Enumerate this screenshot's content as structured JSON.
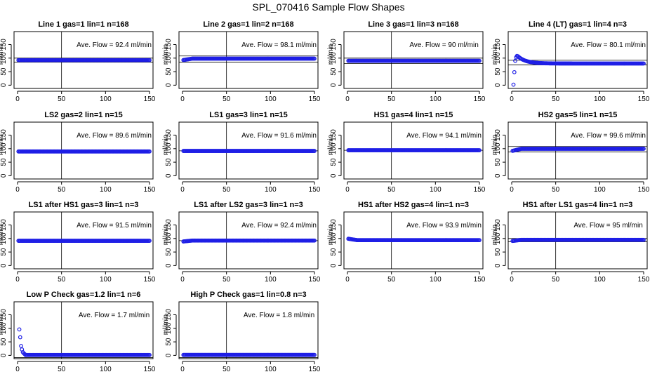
{
  "figure": {
    "title": "SPL_070416  Sample Flow Shapes",
    "series_color": "#1f1fe6"
  },
  "chart_data": [
    {
      "type": "scatter",
      "title": "Line 1 gas=1 lin=1 n=168",
      "xlabel": "",
      "ylabel": "ml/min",
      "x_ticks": [
        0,
        50,
        100,
        150
      ],
      "y_ticks": [
        0,
        50,
        100,
        150
      ],
      "xlim": [
        -4,
        154
      ],
      "ylim": [
        -12,
        198
      ],
      "vline": 50,
      "hlines": [
        85,
        100
      ],
      "annotation": "Ave. Flow =  92.4  ml/min",
      "series": [
        {
          "shape": "flat",
          "x_range": [
            1,
            150
          ],
          "value": 92.4
        }
      ]
    },
    {
      "type": "scatter",
      "title": "Line 2 gas=1 lin=2 n=168",
      "xlabel": "",
      "ylabel": "ml/min",
      "x_ticks": [
        0,
        50,
        100,
        150
      ],
      "y_ticks": [
        0,
        50,
        100,
        150
      ],
      "xlim": [
        -4,
        154
      ],
      "ylim": [
        -12,
        198
      ],
      "vline": 50,
      "hlines": [
        85,
        108
      ],
      "annotation": "Ave. Flow =  98.1  ml/min",
      "series": [
        {
          "shape": "flat",
          "x_range": [
            1,
            150
          ],
          "value": 98.1,
          "start_value": 93
        }
      ]
    },
    {
      "type": "scatter",
      "title": "Line 3 gas=1 lin=3 n=168",
      "xlabel": "",
      "ylabel": "ml/min",
      "x_ticks": [
        0,
        50,
        100,
        150
      ],
      "y_ticks": [
        0,
        50,
        100,
        150
      ],
      "xlim": [
        -4,
        154
      ],
      "ylim": [
        -12,
        198
      ],
      "vline": 50,
      "hlines": [
        80,
        100
      ],
      "annotation": "Ave. Flow =  90  ml/min",
      "series": [
        {
          "shape": "flat",
          "x_range": [
            1,
            150
          ],
          "value": 90
        }
      ]
    },
    {
      "type": "scatter",
      "title": "Line 4 (LT) gas=1 lin=4 n=3",
      "xlabel": "",
      "ylabel": "ml/min",
      "x_ticks": [
        0,
        50,
        100,
        150
      ],
      "y_ticks": [
        0,
        50,
        100,
        150
      ],
      "xlim": [
        -4,
        154
      ],
      "ylim": [
        -12,
        198
      ],
      "vline": 50,
      "hlines": [
        75,
        92
      ],
      "annotation": "Ave. Flow =  80.1  ml/min",
      "series": [
        {
          "shape": "overshoot",
          "x_range": [
            1,
            150
          ],
          "value": 80.1,
          "leading_points": [
            [
              2,
              2
            ],
            [
              3,
              48
            ],
            [
              4,
              90
            ],
            [
              5,
              103
            ],
            [
              6,
              108
            ],
            [
              7,
              107
            ]
          ]
        }
      ]
    },
    {
      "type": "scatter",
      "title": "LS2 gas=2 lin=1 n=15",
      "xlabel": "",
      "ylabel": "ml/min",
      "x_ticks": [
        0,
        50,
        100,
        150
      ],
      "y_ticks": [
        0,
        50,
        100,
        150
      ],
      "xlim": [
        -4,
        154
      ],
      "ylim": [
        -12,
        198
      ],
      "vline": 50,
      "hlines": [],
      "annotation": "Ave. Flow =  89.6  ml/min",
      "series": [
        {
          "shape": "flat",
          "x_range": [
            1,
            150
          ],
          "value": 89.6
        }
      ]
    },
    {
      "type": "scatter",
      "title": "LS1 gas=3 lin=1 n=15",
      "xlabel": "",
      "ylabel": "ml/min",
      "x_ticks": [
        0,
        50,
        100,
        150
      ],
      "y_ticks": [
        0,
        50,
        100,
        150
      ],
      "xlim": [
        -4,
        154
      ],
      "ylim": [
        -12,
        198
      ],
      "vline": 50,
      "hlines": [
        92
      ],
      "annotation": "Ave. Flow =  91.6  ml/min",
      "series": [
        {
          "shape": "flat",
          "x_range": [
            1,
            150
          ],
          "value": 91.6
        }
      ]
    },
    {
      "type": "scatter",
      "title": "HS1 gas=4 lin=1 n=15",
      "xlabel": "",
      "ylabel": "ml/min",
      "x_ticks": [
        0,
        50,
        100,
        150
      ],
      "y_ticks": [
        0,
        50,
        100,
        150
      ],
      "xlim": [
        -4,
        154
      ],
      "ylim": [
        -12,
        198
      ],
      "vline": 50,
      "hlines": [
        94
      ],
      "annotation": "Ave. Flow =  94.1  ml/min",
      "series": [
        {
          "shape": "flat",
          "x_range": [
            1,
            150
          ],
          "value": 94.1
        }
      ]
    },
    {
      "type": "scatter",
      "title": "HS2 gas=5 lin=1 n=15",
      "xlabel": "",
      "ylabel": "ml/min",
      "x_ticks": [
        0,
        50,
        100,
        150
      ],
      "y_ticks": [
        0,
        50,
        100,
        150
      ],
      "xlim": [
        -4,
        154
      ],
      "ylim": [
        -12,
        198
      ],
      "vline": 50,
      "hlines": [
        88,
        108
      ],
      "annotation": "Ave. Flow =  99.6  ml/min",
      "series": [
        {
          "shape": "flat",
          "x_range": [
            1,
            150
          ],
          "value": 99.6,
          "start_value": 92
        }
      ]
    },
    {
      "type": "scatter",
      "title": "LS1 after HS1 gas=3 lin=1 n=3",
      "xlabel": "",
      "ylabel": "ml/min",
      "x_ticks": [
        0,
        50,
        100,
        150
      ],
      "y_ticks": [
        0,
        50,
        100,
        150
      ],
      "xlim": [
        -4,
        154
      ],
      "ylim": [
        -12,
        198
      ],
      "vline": 50,
      "hlines": [],
      "annotation": "Ave. Flow =  91.5  ml/min",
      "series": [
        {
          "shape": "flat",
          "x_range": [
            1,
            150
          ],
          "value": 91.5
        }
      ]
    },
    {
      "type": "scatter",
      "title": "LS1 after LS2 gas=3 lin=1 n=3",
      "xlabel": "",
      "ylabel": "ml/min",
      "x_ticks": [
        0,
        50,
        100,
        150
      ],
      "y_ticks": [
        0,
        50,
        100,
        150
      ],
      "xlim": [
        -4,
        154
      ],
      "ylim": [
        -12,
        198
      ],
      "vline": 50,
      "hlines": [
        92
      ],
      "annotation": "Ave. Flow =  92.4  ml/min",
      "series": [
        {
          "shape": "flat",
          "x_range": [
            1,
            150
          ],
          "value": 92.4,
          "start_value": 89
        }
      ]
    },
    {
      "type": "scatter",
      "title": "HS1 after HS2 gas=4 lin=1 n=3",
      "xlabel": "",
      "ylabel": "ml/min",
      "x_ticks": [
        0,
        50,
        100,
        150
      ],
      "y_ticks": [
        0,
        50,
        100,
        150
      ],
      "xlim": [
        -4,
        154
      ],
      "ylim": [
        -12,
        198
      ],
      "vline": 50,
      "hlines": [],
      "annotation": "Ave. Flow =  93.9  ml/min",
      "series": [
        {
          "shape": "flat",
          "x_range": [
            1,
            150
          ],
          "value": 93.9,
          "start_value": 99
        }
      ]
    },
    {
      "type": "scatter",
      "title": "HS1 after LS1 gas=4 lin=1 n=3",
      "xlabel": "",
      "ylabel": "ml/min",
      "x_ticks": [
        0,
        50,
        100,
        150
      ],
      "y_ticks": [
        0,
        50,
        100,
        150
      ],
      "xlim": [
        -4,
        154
      ],
      "ylim": [
        -12,
        198
      ],
      "vline": 50,
      "hlines": [
        88,
        100
      ],
      "annotation": "Ave. Flow =  95  ml/min",
      "series": [
        {
          "shape": "flat",
          "x_range": [
            1,
            150
          ],
          "value": 95,
          "start_value": 91
        }
      ]
    },
    {
      "type": "scatter",
      "title": "Low P Check gas=1.2 lin=1 n=6",
      "xlabel": "",
      "ylabel": "ml/min",
      "x_ticks": [
        0,
        50,
        100,
        150
      ],
      "y_ticks": [
        0,
        50,
        100,
        150
      ],
      "xlim": [
        -4,
        154
      ],
      "ylim": [
        -12,
        198
      ],
      "vline": 50,
      "hlines": [
        -8
      ],
      "annotation": "Ave. Flow =  1.7  ml/min",
      "series": [
        {
          "shape": "decay",
          "x_range": [
            1,
            150
          ],
          "value": 1.7,
          "leading_points": [
            [
              2,
              96
            ],
            [
              3,
              67
            ],
            [
              4,
              35
            ],
            [
              5,
              22
            ],
            [
              6,
              12
            ],
            [
              7,
              8
            ],
            [
              8,
              5
            ]
          ]
        }
      ]
    },
    {
      "type": "scatter",
      "title": "High P Check gas=1 lin=0.8 n=3",
      "xlabel": "",
      "ylabel": "ml/min",
      "x_ticks": [
        0,
        50,
        100,
        150
      ],
      "y_ticks": [
        0,
        50,
        100,
        150
      ],
      "xlim": [
        -4,
        154
      ],
      "ylim": [
        -12,
        198
      ],
      "vline": 50,
      "hlines": [
        -8
      ],
      "annotation": "Ave. Flow =  1.8  ml/min",
      "series": [
        {
          "shape": "flat",
          "x_range": [
            1,
            150
          ],
          "value": 1.8
        }
      ]
    }
  ]
}
